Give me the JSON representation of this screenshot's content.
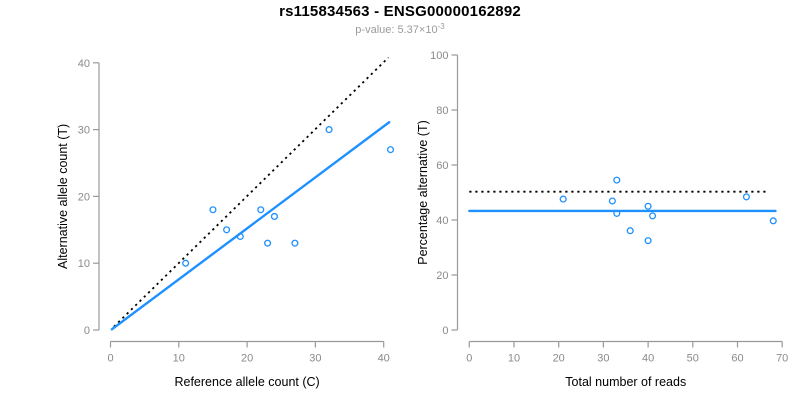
{
  "header": {
    "title": "rs115834563 - ENSG00000162892",
    "subtitle_prefix": "p-value: 5.37×10",
    "subtitle_exponent": "-3"
  },
  "colors": {
    "background": "#ffffff",
    "accent_blue": "#1e90ff",
    "dotted_line_black": "#000000",
    "axis_gray": "#999999",
    "tick_label_gray": "#8a8a8a",
    "axis_title_black": "#000000",
    "subtitle_gray": "#9a9a9a"
  },
  "chart_data": [
    {
      "type": "scatter",
      "name": "allele-count-scatter",
      "title": "",
      "xlabel": "Reference allele count (C)",
      "ylabel": "Alternative allele count (T)",
      "xlim": [
        0,
        41
      ],
      "ylim": [
        0,
        41
      ],
      "xticks": [
        0,
        10,
        20,
        30,
        40
      ],
      "yticks": [
        0,
        10,
        20,
        30,
        40
      ],
      "grid": false,
      "legend": "none",
      "marker": "open-circle",
      "points": [
        [
          11,
          10
        ],
        [
          15,
          18
        ],
        [
          17,
          15
        ],
        [
          19,
          14
        ],
        [
          22,
          18
        ],
        [
          23,
          13
        ],
        [
          24,
          17
        ],
        [
          27,
          13
        ],
        [
          32,
          30
        ],
        [
          41,
          27
        ]
      ],
      "lines": [
        {
          "name": "identity-line",
          "style": "dotted",
          "color": "#000000",
          "from": [
            0.5,
            0.5
          ],
          "to": [
            40.7,
            40.8
          ]
        },
        {
          "name": "regression-line",
          "style": "solid",
          "color": "#1e90ff",
          "from": [
            0.2,
            0.1
          ],
          "to": [
            40.8,
            31.1
          ]
        }
      ]
    },
    {
      "type": "scatter",
      "name": "percentage-alternative-scatter",
      "title": "",
      "xlabel": "Total number of reads",
      "ylabel": "Percentage alternative (T)",
      "xlim": [
        0,
        70
      ],
      "ylim": [
        0,
        100
      ],
      "xticks": [
        0,
        10,
        20,
        30,
        40,
        50,
        60,
        70
      ],
      "yticks": [
        0,
        20,
        40,
        60,
        80,
        100
      ],
      "grid": false,
      "legend": "none",
      "marker": "open-circle",
      "points": [
        [
          21,
          47.6
        ],
        [
          32,
          46.9
        ],
        [
          33,
          54.5
        ],
        [
          33,
          42.4
        ],
        [
          36,
          36.1
        ],
        [
          40,
          45.0
        ],
        [
          40,
          32.5
        ],
        [
          41,
          41.5
        ],
        [
          62,
          48.4
        ],
        [
          68,
          39.7
        ]
      ],
      "lines": [
        {
          "name": "expected-50pct-line",
          "style": "dotted",
          "color": "#000000",
          "from": [
            0,
            50.3
          ],
          "to": [
            67,
            50.3
          ]
        },
        {
          "name": "mean-percentage-line",
          "style": "solid",
          "color": "#1e90ff",
          "from": [
            0,
            43.3
          ],
          "to": [
            68.5,
            43.3
          ]
        }
      ]
    }
  ]
}
